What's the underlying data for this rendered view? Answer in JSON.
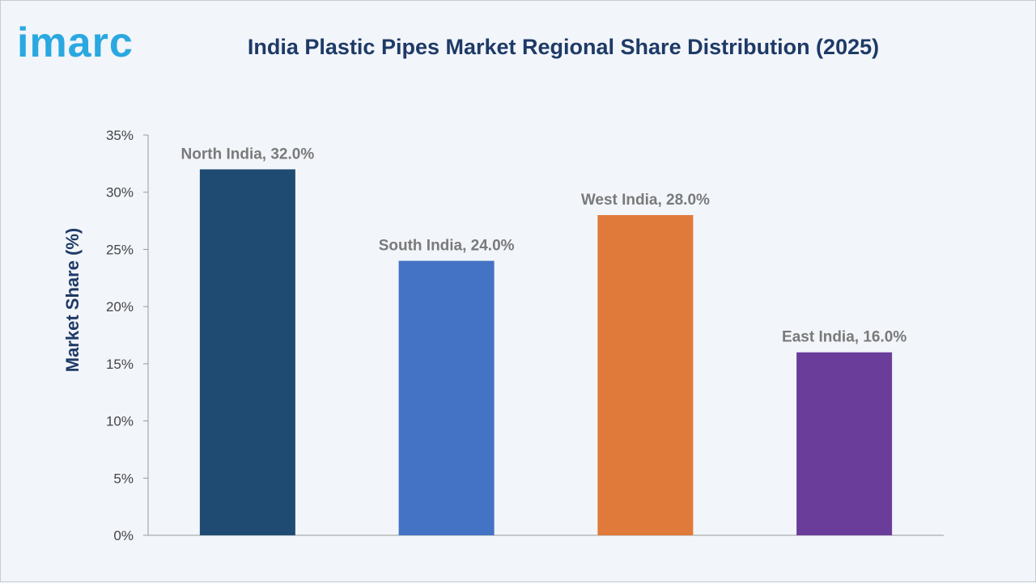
{
  "brand": {
    "logo_text": "imarc",
    "logo_color": "#2aa8e0"
  },
  "colors": {
    "background": "#f2f5fa",
    "bars": [
      "#1f4b73",
      "#4472c4",
      "#e07a3a",
      "#6a3d9a"
    ]
  },
  "chart_data": {
    "type": "bar",
    "title": "India Plastic Pipes Market Regional Share Distribution (2025)",
    "xlabel": "",
    "ylabel": "Market Share (%)",
    "categories": [
      "North India",
      "South India",
      "West India",
      "East India"
    ],
    "values": [
      32.0,
      24.0,
      28.0,
      16.0
    ],
    "data_labels": [
      "North India, 32.0%",
      "South India, 24.0%",
      "West India, 28.0%",
      "East India, 16.0%"
    ],
    "ylim": [
      0,
      35
    ],
    "yticks": [
      0,
      5,
      10,
      15,
      20,
      25,
      30,
      35
    ],
    "ytick_labels": [
      "0%",
      "5%",
      "10%",
      "15%",
      "20%",
      "25%",
      "30%",
      "35%"
    ],
    "grid": false,
    "legend": "none"
  }
}
